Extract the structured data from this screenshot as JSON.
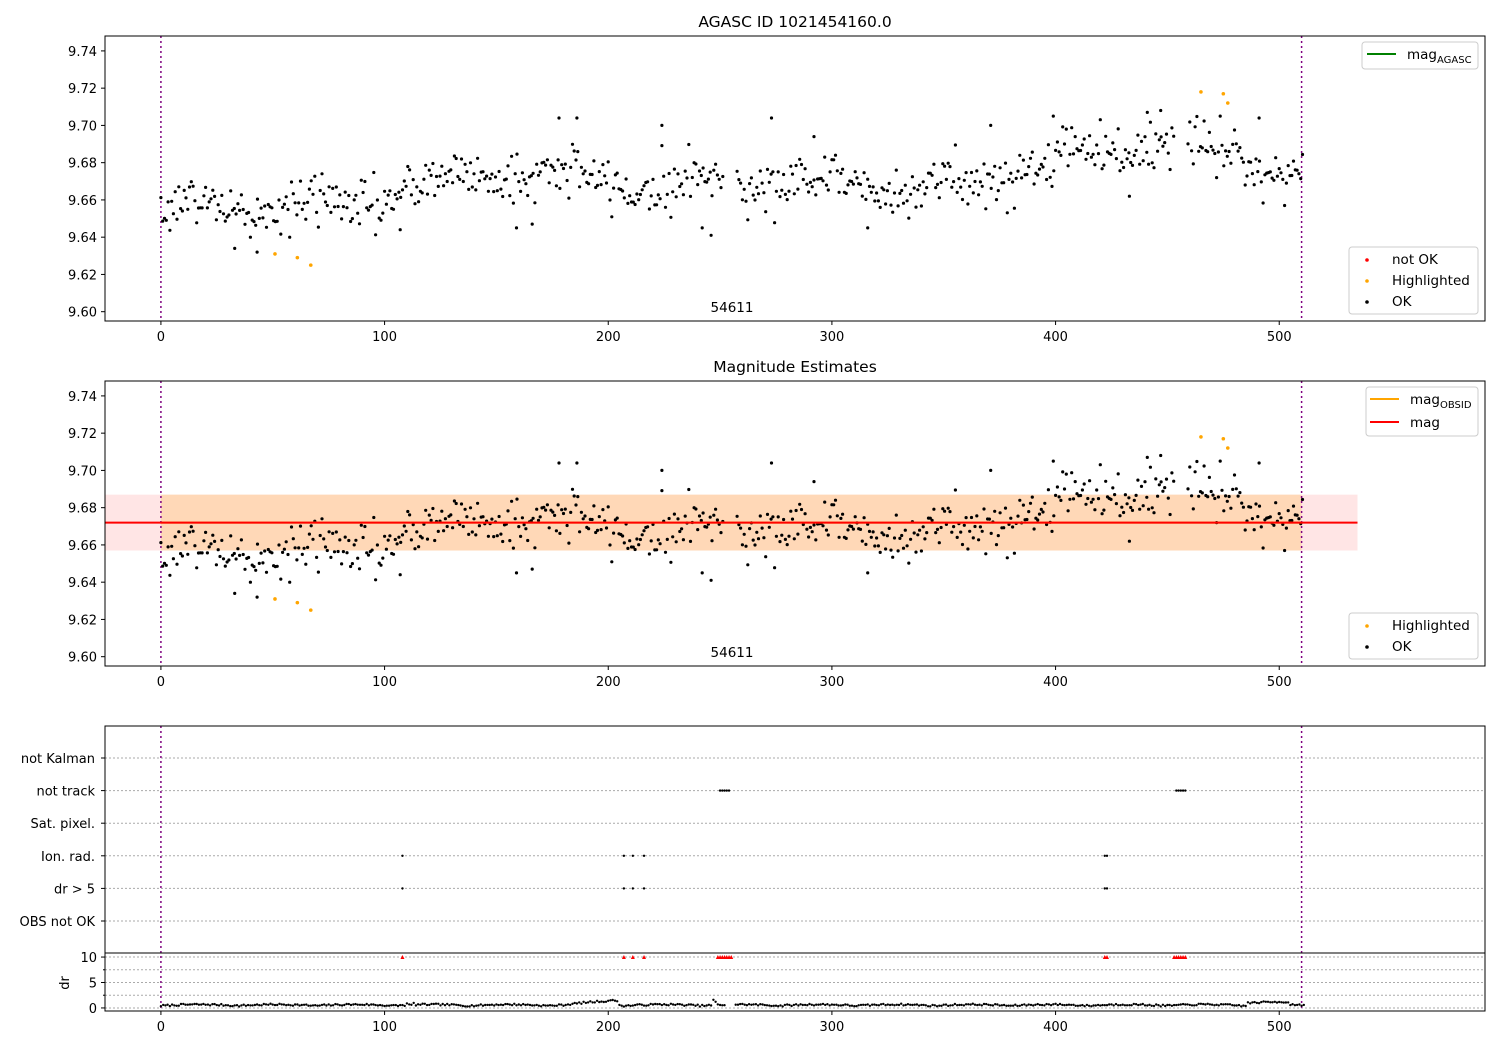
{
  "chart_data": [
    {
      "type": "scatter",
      "title": "AGASC ID 1021454160.0",
      "annotation": "54611",
      "xlim": [
        -25,
        592
      ],
      "ylim": [
        9.595,
        9.748
      ],
      "xticks": [
        0,
        100,
        200,
        300,
        400,
        500
      ],
      "yticks": [
        9.6,
        9.62,
        9.64,
        9.66,
        9.68,
        9.7,
        9.72,
        9.74
      ],
      "vlines": [
        0,
        510
      ],
      "legend_top": [
        {
          "label": "mag",
          "sub": "AGASC",
          "color": "#008000",
          "kind": "line"
        }
      ],
      "legend_bottom": [
        {
          "label": "not OK",
          "color": "#ff0000",
          "kind": "dot"
        },
        {
          "label": "Highlighted",
          "color": "#ffa500",
          "kind": "dot"
        },
        {
          "label": "OK",
          "color": "#000000",
          "kind": "dot"
        }
      ],
      "highlighted_points": [
        [
          51,
          9.631
        ],
        [
          61,
          9.629
        ],
        [
          67,
          9.625
        ],
        [
          465,
          9.718
        ],
        [
          475,
          9.717
        ],
        [
          477,
          9.712
        ]
      ],
      "ok_trend": {
        "x": [
          0,
          50,
          100,
          150,
          200,
          250,
          300,
          350,
          400,
          450,
          510
        ],
        "y": [
          9.652,
          9.656,
          9.664,
          9.672,
          9.671,
          9.671,
          9.666,
          9.668,
          9.683,
          9.688,
          9.679
        ],
        "noise": 0.0125,
        "step": 0.8
      },
      "ok_outliers": [
        [
          33,
          9.634
        ],
        [
          43,
          9.632
        ],
        [
          107,
          9.644
        ],
        [
          159,
          9.645
        ],
        [
          166,
          9.647
        ],
        [
          178,
          9.704
        ],
        [
          186,
          9.704
        ],
        [
          224,
          9.7
        ],
        [
          242,
          9.645
        ],
        [
          246,
          9.641
        ],
        [
          273,
          9.704
        ],
        [
          292,
          9.694
        ],
        [
          316,
          9.645
        ],
        [
          371,
          9.7
        ],
        [
          399,
          9.705
        ],
        [
          433,
          9.662
        ],
        [
          441,
          9.707
        ],
        [
          447,
          9.708
        ],
        [
          491,
          9.704
        ]
      ]
    },
    {
      "type": "scatter",
      "title": "Magnitude Estimates",
      "annotation": "54611",
      "xlim": [
        -25,
        592
      ],
      "ylim": [
        9.595,
        9.748
      ],
      "xticks": [
        0,
        100,
        200,
        300,
        400,
        500
      ],
      "yticks": [
        9.6,
        9.62,
        9.64,
        9.66,
        9.68,
        9.7,
        9.72,
        9.74
      ],
      "vlines": [
        0,
        510
      ],
      "mag_line": 9.672,
      "mag_band": [
        9.657,
        9.687
      ],
      "band_extent": [
        -25,
        535
      ],
      "obsid_band": [
        9.657,
        9.687
      ],
      "obsid_extent": [
        0,
        510
      ],
      "legend_top": [
        {
          "label": "mag",
          "sub": "OBSID",
          "color": "#ffa500",
          "kind": "line"
        },
        {
          "label": "mag",
          "sub": "",
          "color": "#ff0000",
          "kind": "line"
        }
      ],
      "legend_bottom": [
        {
          "label": "Highlighted",
          "color": "#ffa500",
          "kind": "dot"
        },
        {
          "label": "OK",
          "color": "#000000",
          "kind": "dot"
        }
      ]
    },
    {
      "type": "scatter",
      "xlim": [
        -25,
        592
      ],
      "xticks": [
        0,
        100,
        200,
        300,
        400,
        500
      ],
      "vlines": [
        0,
        510
      ],
      "flag_rows": [
        "not Kalman",
        "not track",
        "Sat. pixel.",
        "Ion. rad.",
        "dr > 5",
        "OBS not OK"
      ],
      "flag_points": {
        "not track": [
          [
            250,
            254
          ],
          [
            454,
            458
          ]
        ],
        "Ion. rad.": [
          [
            108,
            108
          ],
          [
            207,
            207
          ],
          [
            211,
            211
          ],
          [
            216,
            216
          ],
          [
            422,
            423
          ]
        ],
        "dr > 5": [
          [
            108,
            108
          ],
          [
            207,
            207
          ],
          [
            211,
            211
          ],
          [
            216,
            216
          ],
          [
            422,
            423
          ]
        ]
      },
      "dr": {
        "ylabel": "dr",
        "yticks": [
          0,
          5,
          10
        ],
        "ylim": [
          -0.6,
          10.6
        ],
        "clip_markers": [
          [
            108,
            108
          ],
          [
            207,
            207
          ],
          [
            211,
            211
          ],
          [
            216,
            216
          ],
          [
            249,
            255
          ],
          [
            422,
            423
          ],
          [
            453,
            458
          ]
        ],
        "gap": [
          253,
          256
        ],
        "spikes": [
          [
            199,
            1.2
          ],
          [
            200,
            1.4
          ],
          [
            201,
            1.5
          ],
          [
            247,
            1.6
          ],
          [
            248,
            1.2
          ],
          [
            110,
            0.9
          ],
          [
            113,
            1.0
          ]
        ]
      }
    }
  ]
}
